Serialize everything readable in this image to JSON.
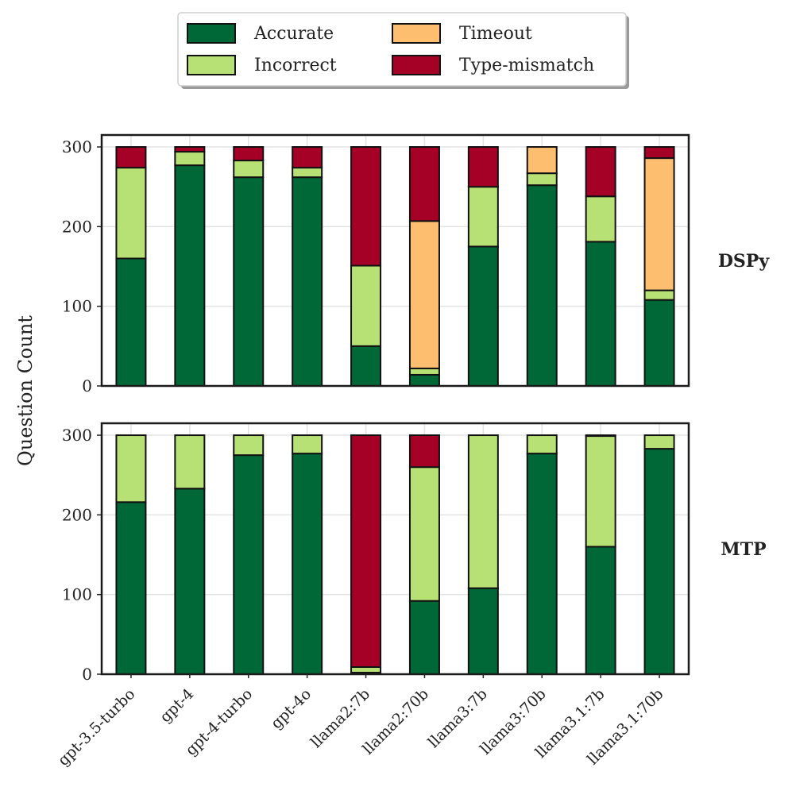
{
  "chart_data": {
    "type": "bar",
    "stacked": true,
    "ylabel": "Question Count",
    "ylim": [
      0,
      315
    ],
    "yticks": [
      0,
      100,
      200,
      300
    ],
    "grid": true,
    "legend_placement": "top-center",
    "categories": [
      "gpt-3.5-turbo",
      "gpt-4",
      "gpt-4-turbo",
      "gpt-4o",
      "llama2:7b",
      "llama2:70b",
      "llama3:7b",
      "llama3:70b",
      "llama3.1:7b",
      "llama3.1:70b"
    ],
    "legend": [
      {
        "name": "Accurate",
        "color": "#006837"
      },
      {
        "name": "Incorrect",
        "color": "#b7e075"
      },
      {
        "name": "Timeout",
        "color": "#fdbf6f"
      },
      {
        "name": "Type-mismatch",
        "color": "#a50026"
      }
    ],
    "panels": [
      {
        "label": "DSPy",
        "series": [
          {
            "name": "Accurate",
            "color": "#006837",
            "values": [
              160,
              277,
              262,
              262,
              50,
              14,
              175,
              252,
              181,
              108
            ]
          },
          {
            "name": "Incorrect",
            "color": "#b7e075",
            "values": [
              114,
              17,
              21,
              12,
              101,
              8,
              75,
              15,
              57,
              12
            ]
          },
          {
            "name": "Timeout",
            "color": "#fdbf6f",
            "values": [
              0,
              0,
              0,
              0,
              0,
              185,
              0,
              33,
              0,
              166
            ]
          },
          {
            "name": "Type-mismatch",
            "color": "#a50026",
            "values": [
              26,
              6,
              17,
              26,
              149,
              93,
              50,
              0,
              62,
              14
            ]
          }
        ]
      },
      {
        "label": "MTP",
        "series": [
          {
            "name": "Accurate",
            "color": "#006837",
            "values": [
              216,
              233,
              275,
              277,
              2,
              92,
              108,
              277,
              160,
              283
            ]
          },
          {
            "name": "Incorrect",
            "color": "#b7e075",
            "values": [
              84,
              67,
              25,
              23,
              7,
              168,
              192,
              23,
              139,
              17
            ]
          },
          {
            "name": "Timeout",
            "color": "#fdbf6f",
            "values": [
              0,
              0,
              0,
              0,
              0,
              0,
              0,
              0,
              0,
              0
            ]
          },
          {
            "name": "Type-mismatch",
            "color": "#a50026",
            "values": [
              0,
              0,
              0,
              0,
              291,
              40,
              0,
              0,
              1,
              0
            ]
          }
        ]
      }
    ]
  }
}
